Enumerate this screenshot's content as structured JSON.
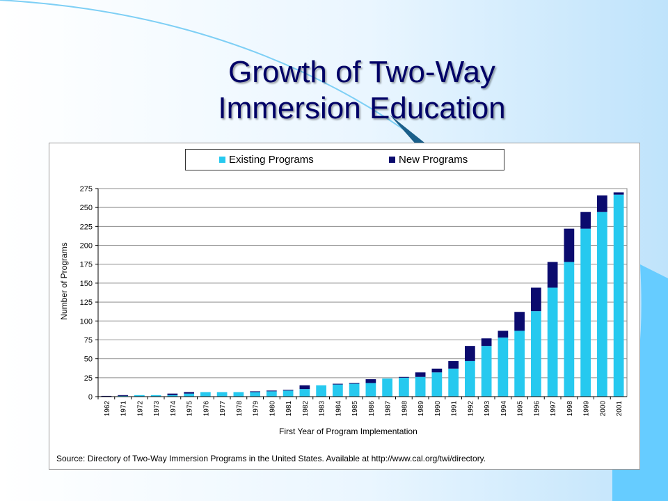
{
  "slide": {
    "title_line1": "Growth of Two-Way",
    "title_line2": "Immersion Education"
  },
  "colors": {
    "existing": "#26c9ef",
    "new": "#0b0b6e",
    "title": "#000066",
    "background_accent": "#66ccff"
  },
  "chart_data": {
    "type": "bar",
    "stacked": true,
    "title": "",
    "xlabel": "First Year of Program Implementation",
    "ylabel": "Number of Programs",
    "ylim": [
      0,
      275
    ],
    "yticks": [
      0,
      25,
      50,
      75,
      100,
      125,
      150,
      175,
      200,
      225,
      250,
      275
    ],
    "grid": true,
    "legend_position": "top",
    "categories": [
      "1962",
      "1971",
      "1972",
      "1973",
      "1974",
      "1975",
      "1976",
      "1977",
      "1978",
      "1979",
      "1980",
      "1981",
      "1982",
      "1983",
      "1984",
      "1985",
      "1986",
      "1987",
      "1988",
      "1989",
      "1990",
      "1991",
      "1992",
      "1993",
      "1994",
      "1995",
      "1996",
      "1997",
      "1998",
      "1999",
      "2000",
      "2001"
    ],
    "series": [
      {
        "name": "Existing Programs",
        "color": "#26c9ef",
        "values": [
          0,
          1,
          2,
          2,
          2,
          4,
          6,
          6,
          6,
          6,
          7,
          8,
          10,
          15,
          16,
          17,
          18,
          24,
          25,
          26,
          32,
          37,
          47,
          67,
          78,
          87,
          113,
          144,
          178,
          222,
          244,
          267
        ]
      },
      {
        "name": "New Programs",
        "color": "#0b0b6e",
        "values": [
          1,
          1,
          0,
          0,
          2,
          2,
          0,
          0,
          0,
          1,
          1,
          1,
          5,
          0,
          1,
          1,
          5,
          0,
          1,
          6,
          5,
          10,
          20,
          10,
          9,
          25,
          31,
          34,
          44,
          22,
          22,
          3
        ]
      }
    ],
    "source": "Source: Directory of Two-Way Immersion Programs in the United States.  Available at http://www.cal.org/twi/directory."
  }
}
